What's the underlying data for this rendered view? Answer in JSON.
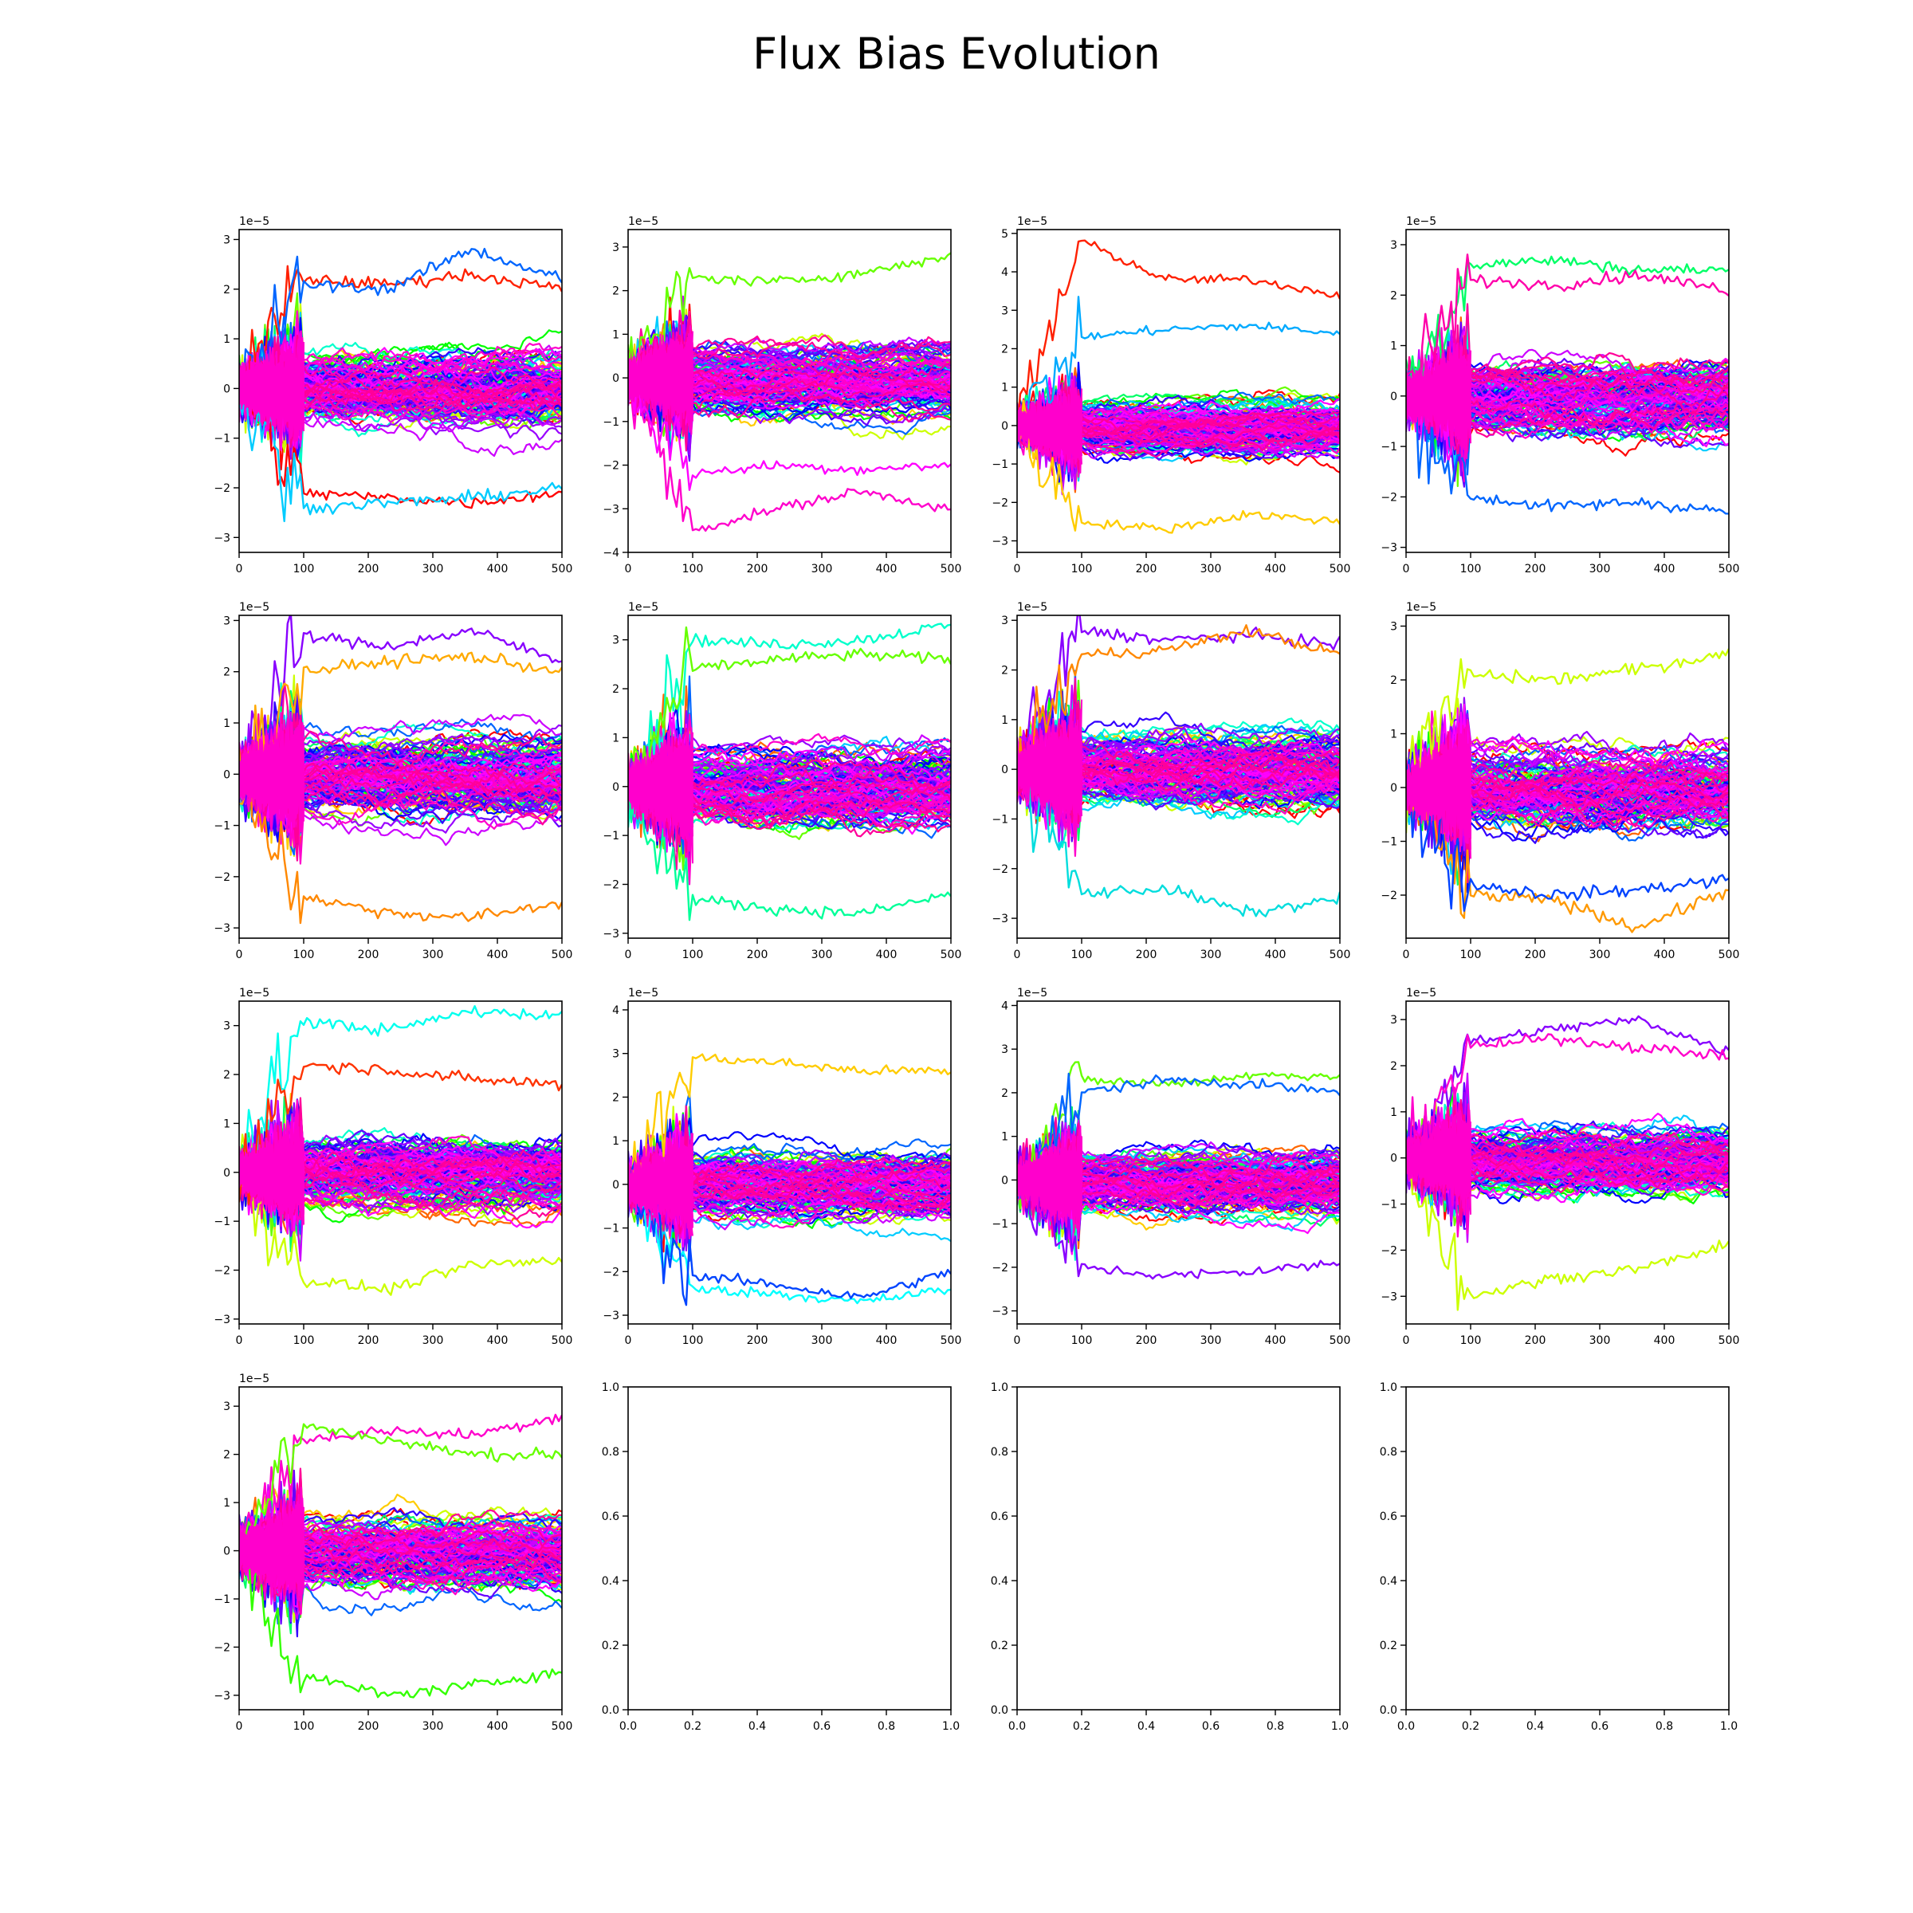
{
  "figure": {
    "title": "Flux Bias Evolution",
    "grid": "4x4",
    "background": "#ffffff"
  },
  "chart_data": [
    {
      "type": "line",
      "xlim": [
        0,
        500
      ],
      "ylim": [
        -3.3,
        3.2
      ],
      "exponent_label": "1e−5",
      "x_ticks": [
        0,
        100,
        200,
        300,
        400,
        500
      ],
      "y_ticks": [
        -3,
        -2,
        -1,
        0,
        1,
        2,
        3
      ],
      "series_count": 150,
      "early_noise_until": 100,
      "spread": 0.9,
      "outliers": [
        {
          "color": "#ff2000",
          "values": [
            2.2,
            2.1,
            2.3,
            2.0
          ]
        },
        {
          "color": "#0066ff",
          "values": [
            2.1,
            2.0,
            2.8,
            2.2
          ]
        },
        {
          "color": "#ff0000",
          "values": [
            -2.1,
            -2.2,
            -2.3,
            -2.1
          ]
        },
        {
          "color": "#00ccff",
          "values": [
            -2.4,
            -2.3,
            -2.2,
            -2.0
          ]
        }
      ]
    },
    {
      "type": "line",
      "xlim": [
        0,
        500
      ],
      "ylim": [
        -4.0,
        3.4
      ],
      "exponent_label": "1e−5",
      "x_ticks": [
        0,
        100,
        200,
        300,
        400,
        500
      ],
      "y_ticks": [
        -4,
        -3,
        -2,
        -1,
        0,
        1,
        2,
        3
      ],
      "series_count": 150,
      "early_noise_until": 100,
      "spread": 0.95,
      "outliers": [
        {
          "color": "#ff00cc",
          "values": [
            -3.5,
            -3.0,
            -2.6,
            -3.0
          ]
        },
        {
          "color": "#66ff00",
          "values": [
            2.3,
            2.2,
            2.4,
            2.8
          ]
        },
        {
          "color": "#ff00ff",
          "values": [
            -2.2,
            -2.0,
            -2.1,
            -2.0
          ]
        }
      ]
    },
    {
      "type": "line",
      "xlim": [
        0,
        500
      ],
      "ylim": [
        -3.3,
        5.1
      ],
      "exponent_label": "1e−5",
      "x_ticks": [
        0,
        100,
        200,
        300,
        400,
        500
      ],
      "y_ticks": [
        -3,
        -2,
        -1,
        0,
        1,
        2,
        3,
        4,
        5
      ],
      "series_count": 150,
      "early_noise_until": 100,
      "spread": 0.85,
      "outliers": [
        {
          "color": "#ff2000",
          "values": [
            4.8,
            3.8,
            3.8,
            3.4
          ]
        },
        {
          "color": "#00aaff",
          "values": [
            2.3,
            2.5,
            2.6,
            2.4
          ]
        },
        {
          "color": "#ffcc00",
          "values": [
            -2.5,
            -2.7,
            -2.3,
            -2.5
          ]
        }
      ]
    },
    {
      "type": "line",
      "xlim": [
        0,
        500
      ],
      "ylim": [
        -3.1,
        3.3
      ],
      "exponent_label": "1e−5",
      "x_ticks": [
        0,
        100,
        200,
        300,
        400,
        500
      ],
      "y_ticks": [
        -3,
        -2,
        -1,
        0,
        1,
        2,
        3
      ],
      "series_count": 150,
      "early_noise_until": 100,
      "spread": 0.9,
      "outliers": [
        {
          "color": "#00ff66",
          "values": [
            2.6,
            2.7,
            2.5,
            2.5
          ]
        },
        {
          "color": "#0066ff",
          "values": [
            -2.0,
            -2.2,
            -2.1,
            -2.3
          ]
        },
        {
          "color": "#ff00aa",
          "values": [
            2.3,
            2.2,
            2.4,
            2.1
          ]
        }
      ]
    },
    {
      "type": "line",
      "xlim": [
        0,
        500
      ],
      "ylim": [
        -3.2,
        3.1
      ],
      "exponent_label": "1e−5",
      "x_ticks": [
        0,
        100,
        200,
        300,
        400,
        500
      ],
      "y_ticks": [
        -3,
        -2,
        -1,
        0,
        1,
        2,
        3
      ],
      "series_count": 150,
      "early_noise_until": 100,
      "spread": 0.95,
      "outliers": [
        {
          "color": "#ff8800",
          "values": [
            -2.4,
            -2.7,
            -2.8,
            -2.5
          ]
        },
        {
          "color": "#8800ff",
          "values": [
            2.7,
            2.5,
            2.8,
            2.2
          ]
        },
        {
          "color": "#ffaa00",
          "values": [
            2.0,
            2.2,
            2.3,
            2.0
          ]
        }
      ]
    },
    {
      "type": "line",
      "xlim": [
        0,
        500
      ],
      "ylim": [
        -3.1,
        3.5
      ],
      "exponent_label": "1e−5",
      "x_ticks": [
        0,
        100,
        200,
        300,
        400,
        500
      ],
      "y_ticks": [
        -3,
        -2,
        -1,
        0,
        1,
        2,
        3
      ],
      "series_count": 150,
      "early_noise_until": 100,
      "spread": 0.95,
      "outliers": [
        {
          "color": "#00ffcc",
          "values": [
            3.0,
            2.9,
            3.0,
            3.3
          ]
        },
        {
          "color": "#00ff99",
          "values": [
            -2.3,
            -2.5,
            -2.6,
            -2.2
          ]
        },
        {
          "color": "#66ff00",
          "values": [
            2.4,
            2.6,
            2.7,
            2.6
          ]
        }
      ]
    },
    {
      "type": "line",
      "xlim": [
        0,
        500
      ],
      "ylim": [
        -3.4,
        3.1
      ],
      "exponent_label": "1e−5",
      "x_ticks": [
        0,
        100,
        200,
        300,
        400,
        500
      ],
      "y_ticks": [
        -3,
        -2,
        -1,
        0,
        1,
        2,
        3
      ],
      "series_count": 150,
      "early_noise_until": 100,
      "spread": 0.95,
      "outliers": [
        {
          "color": "#00dddd",
          "values": [
            -2.5,
            -2.4,
            -2.9,
            -2.6
          ]
        },
        {
          "color": "#8800ff",
          "values": [
            2.8,
            2.6,
            2.7,
            2.5
          ]
        },
        {
          "color": "#ff8800",
          "values": [
            2.3,
            2.4,
            2.8,
            2.3
          ]
        }
      ]
    },
    {
      "type": "line",
      "xlim": [
        0,
        500
      ],
      "ylim": [
        -2.8,
        3.2
      ],
      "exponent_label": "1e−5",
      "x_ticks": [
        0,
        100,
        200,
        300,
        400,
        500
      ],
      "y_ticks": [
        -2,
        -1,
        0,
        1,
        2,
        3
      ],
      "series_count": 150,
      "early_noise_until": 100,
      "spread": 0.9,
      "outliers": [
        {
          "color": "#ff9900",
          "values": [
            -2.0,
            -2.1,
            -2.6,
            -1.9
          ]
        },
        {
          "color": "#ccff00",
          "values": [
            2.1,
            2.0,
            2.2,
            2.5
          ]
        },
        {
          "color": "#0044ff",
          "values": [
            -1.8,
            -2.0,
            -1.9,
            -1.7
          ]
        }
      ]
    },
    {
      "type": "line",
      "xlim": [
        0,
        500
      ],
      "ylim": [
        -3.1,
        3.5
      ],
      "exponent_label": "1e−5",
      "x_ticks": [
        0,
        100,
        200,
        300,
        400,
        500
      ],
      "y_ticks": [
        -3,
        -2,
        -1,
        0,
        1,
        2,
        3
      ],
      "series_count": 150,
      "early_noise_until": 100,
      "spread": 0.9,
      "outliers": [
        {
          "color": "#00ffee",
          "values": [
            3.1,
            2.9,
            3.3,
            3.2
          ]
        },
        {
          "color": "#ccff00",
          "values": [
            -2.2,
            -2.4,
            -1.9,
            -1.8
          ]
        },
        {
          "color": "#ff3300",
          "values": [
            2.2,
            2.1,
            1.9,
            1.8
          ]
        }
      ]
    },
    {
      "type": "line",
      "xlim": [
        0,
        500
      ],
      "ylim": [
        -3.2,
        4.2
      ],
      "exponent_label": "1e−5",
      "x_ticks": [
        0,
        100,
        200,
        300,
        400,
        500
      ],
      "y_ticks": [
        -3,
        -2,
        -1,
        0,
        1,
        2,
        3,
        4
      ],
      "series_count": 150,
      "early_noise_until": 100,
      "spread": 0.95,
      "outliers": [
        {
          "color": "#ffcc00",
          "values": [
            2.9,
            2.8,
            2.6,
            2.6
          ]
        },
        {
          "color": "#00ffff",
          "values": [
            -2.4,
            -2.5,
            -2.7,
            -2.4
          ]
        },
        {
          "color": "#0044ff",
          "values": [
            -2.1,
            -2.3,
            -2.6,
            -2.0
          ]
        }
      ]
    },
    {
      "type": "line",
      "xlim": [
        0,
        500
      ],
      "ylim": [
        -3.3,
        4.1
      ],
      "exponent_label": "1e−5",
      "x_ticks": [
        0,
        100,
        200,
        300,
        400,
        500
      ],
      "y_ticks": [
        -3,
        -2,
        -1,
        0,
        1,
        2,
        3,
        4
      ],
      "series_count": 150,
      "early_noise_until": 100,
      "spread": 0.9,
      "outliers": [
        {
          "color": "#66ff00",
          "values": [
            2.3,
            2.2,
            2.4,
            2.4
          ]
        },
        {
          "color": "#8800ff",
          "values": [
            -2.0,
            -2.2,
            -2.1,
            -1.9
          ]
        },
        {
          "color": "#0066ff",
          "values": [
            2.0,
            2.3,
            2.2,
            2.0
          ]
        }
      ]
    },
    {
      "type": "line",
      "xlim": [
        0,
        500
      ],
      "ylim": [
        -3.6,
        3.4
      ],
      "exponent_label": "1e−5",
      "x_ticks": [
        0,
        100,
        200,
        300,
        400,
        500
      ],
      "y_ticks": [
        -3,
        -2,
        -1,
        0,
        1,
        2,
        3
      ],
      "series_count": 150,
      "early_noise_until": 100,
      "spread": 0.9,
      "outliers": [
        {
          "color": "#8800ff",
          "values": [
            2.5,
            2.8,
            3.0,
            2.3
          ]
        },
        {
          "color": "#ccff00",
          "values": [
            -3.0,
            -2.6,
            -2.4,
            -1.9
          ]
        },
        {
          "color": "#ff00cc",
          "values": [
            2.4,
            2.6,
            2.4,
            2.2
          ]
        }
      ]
    },
    {
      "type": "line",
      "xlim": [
        0,
        500
      ],
      "ylim": [
        -3.3,
        3.4
      ],
      "exponent_label": "1e−5",
      "x_ticks": [
        0,
        100,
        200,
        300,
        400,
        500
      ],
      "y_ticks": [
        -3,
        -2,
        -1,
        0,
        1,
        2,
        3
      ],
      "series_count": 150,
      "early_noise_until": 100,
      "spread": 0.9,
      "outliers": [
        {
          "color": "#33ff00",
          "values": [
            -2.6,
            -3.0,
            -2.8,
            -2.5
          ]
        },
        {
          "color": "#ff00cc",
          "values": [
            2.3,
            2.5,
            2.4,
            2.8
          ]
        },
        {
          "color": "#66ff00",
          "values": [
            2.6,
            2.3,
            2.0,
            2.0
          ]
        }
      ]
    },
    {
      "type": "empty",
      "xlim": [
        0,
        1
      ],
      "ylim": [
        0,
        1
      ],
      "x_ticks": [
        "0.0",
        "0.2",
        "0.4",
        "0.6",
        "0.8",
        "1.0"
      ],
      "y_ticks": [
        "0.0",
        "0.2",
        "0.4",
        "0.6",
        "0.8",
        "1.0"
      ]
    },
    {
      "type": "empty",
      "xlim": [
        0,
        1
      ],
      "ylim": [
        0,
        1
      ],
      "x_ticks": [
        "0.0",
        "0.2",
        "0.4",
        "0.6",
        "0.8",
        "1.0"
      ],
      "y_ticks": [
        "0.0",
        "0.2",
        "0.4",
        "0.6",
        "0.8",
        "1.0"
      ]
    },
    {
      "type": "empty",
      "xlim": [
        0,
        1
      ],
      "ylim": [
        0,
        1
      ],
      "x_ticks": [
        "0.0",
        "0.2",
        "0.4",
        "0.6",
        "0.8",
        "1.0"
      ],
      "y_ticks": [
        "0.0",
        "0.2",
        "0.4",
        "0.6",
        "0.8",
        "1.0"
      ]
    }
  ],
  "palette": [
    "#ff0000",
    "#ff6600",
    "#ffcc00",
    "#ccff00",
    "#66ff00",
    "#00ff00",
    "#00ff66",
    "#00ffcc",
    "#00ccff",
    "#0066ff",
    "#0000ff",
    "#3300ff",
    "#6600ff",
    "#9900ff",
    "#cc00ff",
    "#ff00ff",
    "#ff00cc",
    "#ff0099"
  ]
}
